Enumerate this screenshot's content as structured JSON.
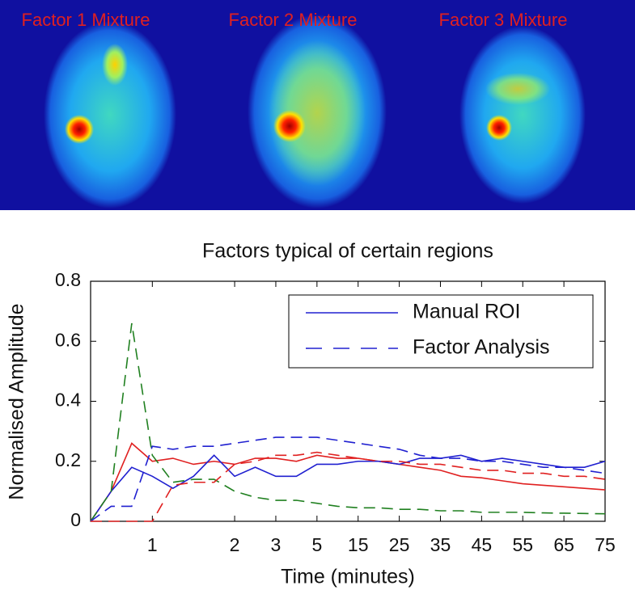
{
  "images": [
    {
      "label": "Factor 1 Mixture"
    },
    {
      "label": "Factor 2 Mixture"
    },
    {
      "label": "Factor 3 Mixture"
    }
  ],
  "chart_data": {
    "type": "line",
    "title": "Factors typical of certain regions",
    "xlabel": "Time (minutes)",
    "ylabel": "Normalised Amplitude",
    "x": [
      0,
      1,
      2,
      3,
      4,
      5,
      6,
      7,
      8,
      9,
      10,
      11,
      12,
      13,
      14,
      15,
      16,
      17,
      18,
      19,
      20,
      21,
      22,
      23,
      24,
      25
    ],
    "xlim": [
      0,
      25
    ],
    "xticks": [
      {
        "value": 3,
        "label": "1"
      },
      {
        "value": 7,
        "label": "2"
      },
      {
        "value": 9,
        "label": "3"
      },
      {
        "value": 11,
        "label": "5"
      },
      {
        "value": 13,
        "label": "15"
      },
      {
        "value": 15,
        "label": "25"
      },
      {
        "value": 17,
        "label": "35"
      },
      {
        "value": 19,
        "label": "45"
      },
      {
        "value": 21,
        "label": "55"
      },
      {
        "value": 23,
        "label": "65"
      },
      {
        "value": 25,
        "label": "75"
      }
    ],
    "ylim": [
      0,
      0.8
    ],
    "yticks": [
      0,
      0.2,
      0.4,
      0.6,
      0.8
    ],
    "legend_position": "upper right",
    "legend": [
      {
        "label": "Manual ROI",
        "dashed": false
      },
      {
        "label": "Factor Analysis",
        "dashed": true
      }
    ],
    "series": [
      {
        "color": "#e02020",
        "dashed": false,
        "values": [
          0,
          0.1,
          0.26,
          0.2,
          0.21,
          0.19,
          0.2,
          0.19,
          0.21,
          0.21,
          0.2,
          0.22,
          0.21,
          0.21,
          0.2,
          0.19,
          0.18,
          0.17,
          0.15,
          0.145,
          0.135,
          0.125,
          0.12,
          0.115,
          0.11,
          0.105
        ]
      },
      {
        "color": "#2020d0",
        "dashed": false,
        "values": [
          0,
          0.1,
          0.18,
          0.15,
          0.11,
          0.15,
          0.22,
          0.15,
          0.18,
          0.15,
          0.15,
          0.19,
          0.19,
          0.2,
          0.2,
          0.19,
          0.21,
          0.21,
          0.22,
          0.2,
          0.21,
          0.2,
          0.19,
          0.18,
          0.18,
          0.2
        ]
      },
      {
        "color": "#208020",
        "dashed": true,
        "values": [
          0,
          0.1,
          0.66,
          0.22,
          0.13,
          0.14,
          0.14,
          0.1,
          0.08,
          0.07,
          0.07,
          0.06,
          0.05,
          0.045,
          0.045,
          0.04,
          0.04,
          0.035,
          0.035,
          0.03,
          0.03,
          0.03,
          0.028,
          0.027,
          0.026,
          0.025
        ]
      },
      {
        "color": "#2020d0",
        "dashed": true,
        "values": [
          0,
          0.05,
          0.05,
          0.25,
          0.24,
          0.25,
          0.25,
          0.26,
          0.27,
          0.28,
          0.28,
          0.28,
          0.27,
          0.26,
          0.25,
          0.24,
          0.22,
          0.21,
          0.21,
          0.2,
          0.2,
          0.19,
          0.18,
          0.18,
          0.17,
          0.16
        ]
      },
      {
        "color": "#e02020",
        "dashed": true,
        "values": [
          0,
          0,
          0,
          0,
          0.12,
          0.13,
          0.13,
          0.19,
          0.2,
          0.22,
          0.22,
          0.23,
          0.22,
          0.21,
          0.2,
          0.2,
          0.19,
          0.19,
          0.18,
          0.17,
          0.17,
          0.16,
          0.16,
          0.15,
          0.15,
          0.14
        ]
      }
    ]
  }
}
